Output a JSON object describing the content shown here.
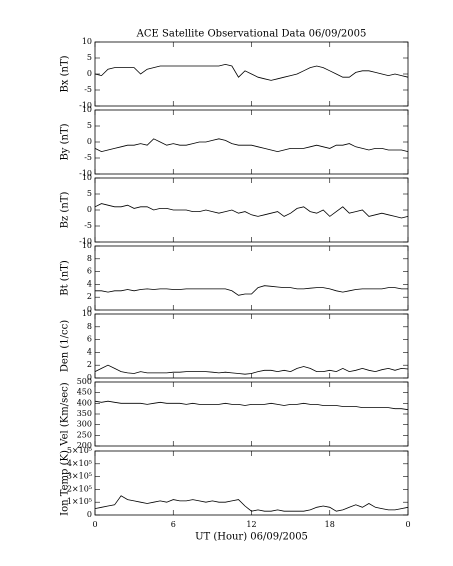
{
  "chart_data": [
    {
      "type": "line",
      "title": "ACE Satellite Observational Data   06/09/2005",
      "ylabel": "Bx (nT)",
      "color": "#000000",
      "x": [
        0,
        0.5,
        1,
        1.5,
        2,
        2.5,
        3,
        3.5,
        4,
        4.5,
        5,
        5.5,
        6,
        6.5,
        7,
        7.5,
        8,
        8.5,
        9,
        9.5,
        10,
        10.5,
        11,
        11.5,
        12,
        12.5,
        13,
        13.5,
        14,
        14.5,
        15,
        15.5,
        16,
        16.5,
        17,
        17.5,
        18,
        18.5,
        19,
        19.5,
        20,
        20.5,
        21,
        21.5,
        22,
        22.5,
        23,
        23.5,
        24
      ],
      "values": [
        0,
        -0.5,
        1.5,
        2,
        2,
        2,
        2,
        0,
        1.5,
        2,
        2.5,
        2.5,
        2.5,
        2.5,
        2.5,
        2.5,
        2.5,
        2.5,
        2.5,
        2.5,
        3,
        2.5,
        -1,
        1,
        0,
        -1,
        -1.5,
        -2,
        -1.5,
        -1,
        -0.5,
        0,
        1,
        2,
        2.5,
        2,
        1,
        0,
        -1,
        -1,
        0.5,
        1,
        1,
        0.5,
        0,
        -0.5,
        0,
        -0.5,
        -1
      ],
      "xlim": [
        0,
        24
      ],
      "ylim": [
        -10,
        10
      ],
      "yticks": [
        -10,
        -5,
        0,
        5,
        10
      ]
    },
    {
      "type": "line",
      "ylabel": "By (nT)",
      "color": "#000000",
      "x": [
        0,
        0.5,
        1,
        1.5,
        2,
        2.5,
        3,
        3.5,
        4,
        4.5,
        5,
        5.5,
        6,
        6.5,
        7,
        7.5,
        8,
        8.5,
        9,
        9.5,
        10,
        10.5,
        11,
        11.5,
        12,
        12.5,
        13,
        13.5,
        14,
        14.5,
        15,
        15.5,
        16,
        16.5,
        17,
        17.5,
        18,
        18.5,
        19,
        19.5,
        20,
        20.5,
        21,
        21.5,
        22,
        22.5,
        23,
        23.5,
        24
      ],
      "values": [
        -2,
        -3,
        -2.5,
        -2,
        -1.5,
        -1,
        -1,
        -0.5,
        -1,
        1,
        0,
        -1,
        -0.5,
        -1,
        -1,
        -0.5,
        0,
        0,
        0.5,
        1,
        0.5,
        -0.5,
        -1,
        -1,
        -1,
        -1.5,
        -2,
        -2.5,
        -3,
        -2.5,
        -2,
        -2,
        -2,
        -1.5,
        -1,
        -1.5,
        -2,
        -1,
        -1,
        -0.5,
        -1.5,
        -2,
        -2.5,
        -2,
        -2,
        -2.5,
        -2.5,
        -2.5,
        -3
      ],
      "xlim": [
        0,
        24
      ],
      "ylim": [
        -10,
        10
      ],
      "yticks": [
        -10,
        -5,
        0,
        5,
        10
      ]
    },
    {
      "type": "line",
      "ylabel": "Bz (nT)",
      "color": "#000000",
      "x": [
        0,
        0.5,
        1,
        1.5,
        2,
        2.5,
        3,
        3.5,
        4,
        4.5,
        5,
        5.5,
        6,
        6.5,
        7,
        7.5,
        8,
        8.5,
        9,
        9.5,
        10,
        10.5,
        11,
        11.5,
        12,
        12.5,
        13,
        13.5,
        14,
        14.5,
        15,
        15.5,
        16,
        16.5,
        17,
        17.5,
        18,
        18.5,
        19,
        19.5,
        20,
        20.5,
        21,
        21.5,
        22,
        22.5,
        23,
        23.5,
        24
      ],
      "values": [
        1,
        2,
        1.5,
        1,
        1,
        1.5,
        0.5,
        1,
        1,
        0,
        0.5,
        0.5,
        0,
        0,
        0,
        -0.5,
        -0.5,
        0,
        -0.5,
        -1,
        -0.5,
        0,
        -1,
        -0.5,
        -1.5,
        -2,
        -1.5,
        -1,
        -0.5,
        -2,
        -1,
        0.5,
        1,
        -0.5,
        -1,
        0,
        -2,
        -0.5,
        1,
        -1,
        -0.5,
        0,
        -2,
        -1.5,
        -1,
        -1.5,
        -2,
        -2.5,
        -2
      ],
      "xlim": [
        0,
        24
      ],
      "ylim": [
        -10,
        10
      ],
      "yticks": [
        -10,
        -5,
        0,
        5,
        10
      ]
    },
    {
      "type": "line",
      "ylabel": "Bt (nT)",
      "color": "#000000",
      "x": [
        0,
        0.5,
        1,
        1.5,
        2,
        2.5,
        3,
        3.5,
        4,
        4.5,
        5,
        5.5,
        6,
        6.5,
        7,
        7.5,
        8,
        8.5,
        9,
        9.5,
        10,
        10.5,
        11,
        11.5,
        12,
        12.5,
        13,
        13.5,
        14,
        14.5,
        15,
        15.5,
        16,
        16.5,
        17,
        17.5,
        18,
        18.5,
        19,
        19.5,
        20,
        20.5,
        21,
        21.5,
        22,
        22.5,
        23,
        23.5,
        24
      ],
      "values": [
        3,
        3,
        2.8,
        3,
        3,
        3.2,
        3,
        3.2,
        3.3,
        3.2,
        3.3,
        3.3,
        3.2,
        3.2,
        3.3,
        3.3,
        3.3,
        3.3,
        3.3,
        3.3,
        3.3,
        3,
        2.3,
        2.5,
        2.5,
        3.5,
        3.8,
        3.7,
        3.6,
        3.5,
        3.5,
        3.3,
        3.3,
        3.4,
        3.5,
        3.5,
        3.3,
        3,
        2.8,
        3,
        3.2,
        3.3,
        3.3,
        3.3,
        3.3,
        3.5,
        3.5,
        3.3,
        3.3
      ],
      "xlim": [
        0,
        24
      ],
      "ylim": [
        0,
        10
      ],
      "yticks": [
        0,
        2,
        4,
        6,
        8,
        10
      ]
    },
    {
      "type": "line",
      "ylabel": "Den (1/cc)",
      "color": "#000000",
      "x": [
        0,
        0.5,
        1,
        1.5,
        2,
        2.5,
        3,
        3.5,
        4,
        4.5,
        5,
        5.5,
        6,
        6.5,
        7,
        7.5,
        8,
        8.5,
        9,
        9.5,
        10,
        10.5,
        11,
        11.5,
        12,
        12.5,
        13,
        13.5,
        14,
        14.5,
        15,
        15.5,
        16,
        16.5,
        17,
        17.5,
        18,
        18.5,
        19,
        19.5,
        20,
        20.5,
        21,
        21.5,
        22,
        22.5,
        23,
        23.5,
        24
      ],
      "values": [
        1,
        1.5,
        2,
        1.5,
        1,
        0.8,
        0.7,
        1,
        0.8,
        0.8,
        0.8,
        0.8,
        0.9,
        0.9,
        1,
        1,
        1,
        1,
        0.9,
        0.8,
        0.9,
        0.8,
        0.7,
        0.6,
        0.7,
        1,
        1.2,
        1.2,
        1,
        1.2,
        1,
        1.5,
        1.8,
        1.5,
        1,
        1,
        1.2,
        1,
        1.5,
        1,
        1.2,
        1.5,
        1.2,
        1,
        1.3,
        1.5,
        1.2,
        1.5,
        1.4
      ],
      "xlim": [
        0,
        24
      ],
      "ylim": [
        0,
        10
      ],
      "yticks": [
        0,
        2,
        4,
        6,
        8,
        10
      ]
    },
    {
      "type": "line",
      "ylabel": "Vel (Km/sec)",
      "color": "#000000",
      "x": [
        0,
        0.5,
        1,
        1.5,
        2,
        2.5,
        3,
        3.5,
        4,
        4.5,
        5,
        5.5,
        6,
        6.5,
        7,
        7.5,
        8,
        8.5,
        9,
        9.5,
        10,
        10.5,
        11,
        11.5,
        12,
        12.5,
        13,
        13.5,
        14,
        14.5,
        15,
        15.5,
        16,
        16.5,
        17,
        17.5,
        18,
        18.5,
        19,
        19.5,
        20,
        20.5,
        21,
        21.5,
        22,
        22.5,
        23,
        23.5,
        24
      ],
      "values": [
        410,
        405,
        410,
        405,
        400,
        400,
        400,
        400,
        395,
        400,
        405,
        400,
        400,
        400,
        395,
        400,
        395,
        395,
        395,
        395,
        400,
        395,
        395,
        390,
        395,
        395,
        395,
        400,
        395,
        390,
        395,
        395,
        400,
        395,
        395,
        390,
        390,
        390,
        385,
        385,
        385,
        380,
        380,
        380,
        380,
        380,
        375,
        375,
        370
      ],
      "xlim": [
        0,
        24
      ],
      "ylim": [
        200,
        500
      ],
      "yticks": [
        200,
        250,
        300,
        350,
        400,
        450,
        500
      ]
    },
    {
      "type": "line",
      "ylabel": "Ion Temp (K)",
      "xlabel": "UT (Hour)   06/09/2005",
      "color": "#000000",
      "x": [
        0,
        0.5,
        1,
        1.5,
        2,
        2.5,
        3,
        3.5,
        4,
        4.5,
        5,
        5.5,
        6,
        6.5,
        7,
        7.5,
        8,
        8.5,
        9,
        9.5,
        10,
        10.5,
        11,
        11.5,
        12,
        12.5,
        13,
        13.5,
        14,
        14.5,
        15,
        15.5,
        16,
        16.5,
        17,
        17.5,
        18,
        18.5,
        19,
        19.5,
        20,
        20.5,
        21,
        21.5,
        22,
        22.5,
        23,
        23.5,
        24
      ],
      "values": [
        50000,
        60000,
        70000,
        80000,
        150000,
        120000,
        110000,
        100000,
        90000,
        100000,
        110000,
        100000,
        120000,
        110000,
        110000,
        120000,
        110000,
        100000,
        110000,
        100000,
        100000,
        110000,
        120000,
        70000,
        30000,
        40000,
        30000,
        30000,
        40000,
        30000,
        30000,
        30000,
        30000,
        40000,
        60000,
        70000,
        60000,
        30000,
        40000,
        60000,
        80000,
        60000,
        90000,
        60000,
        50000,
        40000,
        40000,
        50000,
        60000
      ],
      "xlim": [
        0,
        24
      ],
      "ylim": [
        0,
        500000
      ],
      "yticks": [
        0,
        {
          "value": 100000,
          "label": "1×10⁵"
        },
        {
          "value": 200000,
          "label": "2×10⁵"
        },
        {
          "value": 300000,
          "label": "3×10⁵"
        },
        {
          "value": 400000,
          "label": "4×10⁵"
        },
        {
          "value": 500000,
          "label": "5×10⁵"
        }
      ],
      "xticks": [
        0,
        6,
        12,
        18,
        {
          "value": 24,
          "label": "0"
        }
      ]
    }
  ]
}
